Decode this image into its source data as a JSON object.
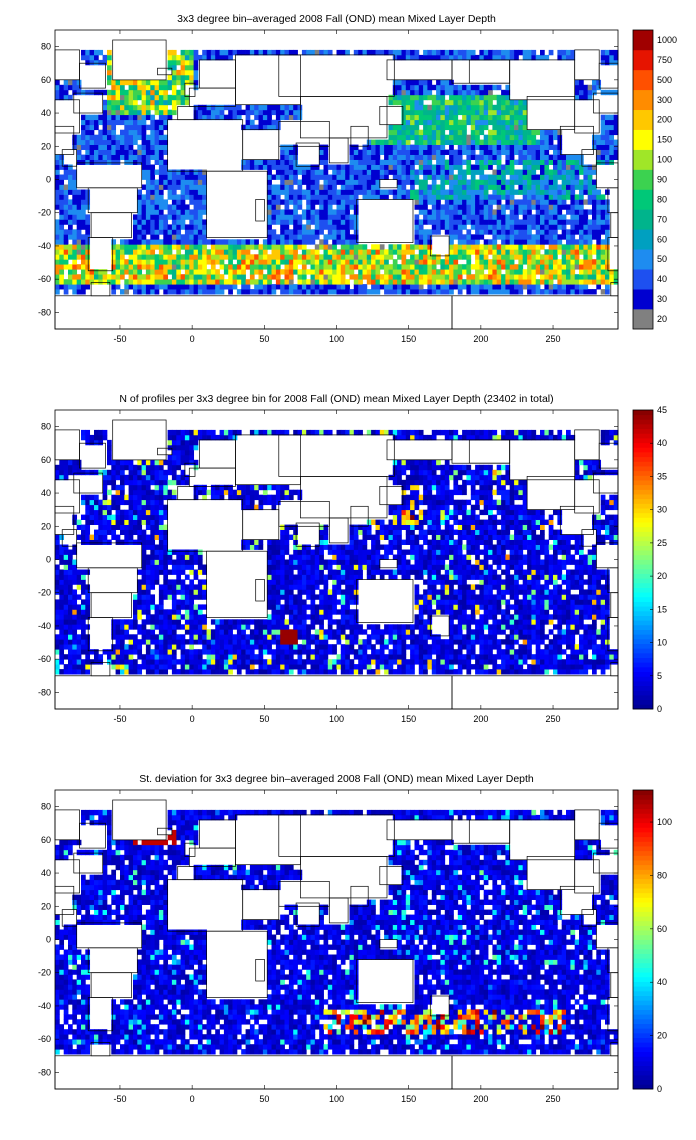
{
  "colors": {
    "jet": [
      "#00008f",
      "#0000ff",
      "#0080ff",
      "#00ffff",
      "#80ff80",
      "#ffff00",
      "#ff8000",
      "#ff0000",
      "#800000"
    ],
    "mld_bins": [
      "#808080",
      "#0000d0",
      "#1e50f0",
      "#1e8cf0",
      "#00a0c0",
      "#00b48c",
      "#00c878",
      "#3cd250",
      "#a0e628",
      "#ffff00",
      "#ffc800",
      "#ff8c00",
      "#ff5000",
      "#e61400",
      "#a00000"
    ],
    "land": "#ffffff",
    "coast": "#000000"
  },
  "chart_data": [
    {
      "type": "heatmap",
      "title": "3x3 degree bin–averaged 2008 Fall (OND) mean Mixed Layer Depth",
      "xlabel": "",
      "ylabel": "",
      "xlim": [
        -95,
        295
      ],
      "ylim": [
        -90,
        90
      ],
      "xticks": [
        -50,
        0,
        50,
        100,
        150,
        200,
        250
      ],
      "yticks": [
        -80,
        -60,
        -40,
        -20,
        0,
        20,
        40,
        60,
        80
      ],
      "colorbar": {
        "scale": "categorical",
        "ticks": [
          "20",
          "30",
          "40",
          "50",
          "60",
          "70",
          "80",
          "90",
          "100",
          "150",
          "200",
          "300",
          "500",
          "750",
          "1000"
        ]
      },
      "grid": false
    },
    {
      "type": "heatmap",
      "title": "N of profiles per 3x3 degree bin for 2008 Fall (OND) mean Mixed Layer Depth  (23402 in total)",
      "xlabel": "",
      "ylabel": "",
      "xlim": [
        -95,
        295
      ],
      "ylim": [
        -90,
        90
      ],
      "xticks": [
        -50,
        0,
        50,
        100,
        150,
        200,
        250
      ],
      "yticks": [
        -80,
        -60,
        -40,
        -20,
        0,
        20,
        40,
        60,
        80
      ],
      "colorbar": {
        "scale": "linear",
        "range": [
          0,
          45
        ],
        "ticks": [
          "0",
          "5",
          "10",
          "15",
          "20",
          "25",
          "30",
          "35",
          "40",
          "45"
        ]
      },
      "grid": false
    },
    {
      "type": "heatmap",
      "title": "St. deviation for 3x3 degree bin–averaged 2008 Fall (OND) mean Mixed Layer Depth",
      "xlabel": "",
      "ylabel": "",
      "xlim": [
        -95,
        295
      ],
      "ylim": [
        -90,
        90
      ],
      "xticks": [
        -50,
        0,
        50,
        100,
        150,
        200,
        250
      ],
      "yticks": [
        -80,
        -60,
        -40,
        -20,
        0,
        20,
        40,
        60,
        80
      ],
      "colorbar": {
        "scale": "linear",
        "range": [
          0,
          112
        ],
        "ticks": [
          "0",
          "20",
          "40",
          "60",
          "80",
          "100"
        ]
      },
      "grid": false
    }
  ]
}
